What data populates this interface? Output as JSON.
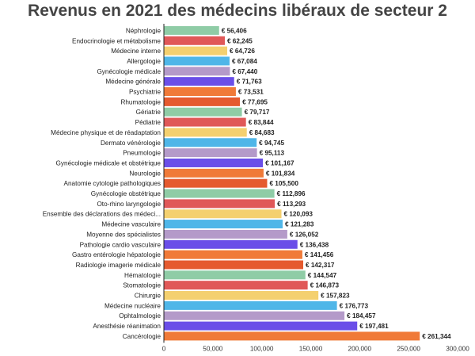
{
  "chart_data": {
    "type": "bar",
    "orientation": "horizontal",
    "title": "Revenus en 2021 des médecins libéraux de secteur 2",
    "xlabel": "",
    "ylabel": "",
    "xlim": [
      0,
      300000
    ],
    "x_ticks": [
      0,
      50000,
      100000,
      150000,
      200000,
      250000,
      300000
    ],
    "x_tick_labels": [
      "0",
      "50,000",
      "100,000",
      "150,000",
      "200,000",
      "250,000",
      "300,000"
    ],
    "grid": false,
    "legend": "none",
    "value_prefix": "€ ",
    "categories": [
      "Néphrologie",
      "Endocrinologie et métabolisme",
      "Médecine interne",
      "Allergologie",
      "Gynécologie médicale",
      "Médecine générale",
      "Psychiatrie",
      "Rhumatologie",
      "Gériatrie",
      "Pédiatrie",
      "Médecine physique et de réadaptation",
      "Dermato vénérologie",
      "Pneumologie",
      "Gynécologie médicale et obstétrique",
      "Neurologie",
      "Anatomie cytologie pathologiques",
      "Gynécologie obstétrique",
      "Oto-rhino laryngologie",
      "Ensemble des déclarations des médeci...",
      "Médecine vasculaire",
      "Moyenne des spécialistes",
      "Pathologie cardio vasculaire",
      "Gastro entérologie hépatologie",
      "Radiologie imagerie médicale",
      "Hématologie",
      "Stomatologie",
      "Chirurgie",
      "Médecine nucléaire",
      "Ophtalmologie",
      "Anesthésie réanimation",
      "Cancérologie"
    ],
    "values": [
      56406,
      62245,
      64726,
      67084,
      67440,
      71763,
      73531,
      77695,
      79717,
      83844,
      84683,
      94745,
      95113,
      101167,
      101834,
      105500,
      112896,
      113293,
      120093,
      121283,
      126052,
      136438,
      141456,
      142317,
      144547,
      146873,
      157823,
      176773,
      184457,
      197481,
      261344
    ],
    "value_labels": [
      "€ 56,406",
      "€ 62,245",
      "€ 64,726",
      "€ 67,084",
      "€ 67,440",
      "€ 71,763",
      "€ 73,531",
      "€ 77,695",
      "€ 79,717",
      "€ 83,844",
      "€ 84,683",
      "€ 94,745",
      "€ 95,113",
      "€ 101,167",
      "€ 101,834",
      "€ 105,500",
      "€ 112,896",
      "€ 113,293",
      "€ 120,093",
      "€ 121,283",
      "€ 126,052",
      "€ 136,438",
      "€ 141,456",
      "€ 142,317",
      "€ 144,547",
      "€ 146,873",
      "€ 157,823",
      "€ 176,773",
      "€ 184,457",
      "€ 197,481",
      "€ 261,344"
    ],
    "palette": [
      "#8fcca6",
      "#e05858",
      "#f4d06f",
      "#4fb6e8",
      "#b49ac9",
      "#6a4ee8",
      "#f07a38",
      "#e55a2f"
    ],
    "bar_colors": [
      "#8fcca6",
      "#e05858",
      "#f4d06f",
      "#4fb6e8",
      "#b49ac9",
      "#6a4ee8",
      "#f07a38",
      "#e55a2f",
      "#8fcca6",
      "#e05858",
      "#f4d06f",
      "#4fb6e8",
      "#b49ac9",
      "#6a4ee8",
      "#f07a38",
      "#e55a2f",
      "#8fcca6",
      "#e05858",
      "#f4d06f",
      "#4fb6e8",
      "#b49ac9",
      "#6a4ee8",
      "#f07a38",
      "#e55a2f",
      "#8fcca6",
      "#e05858",
      "#f4d06f",
      "#4fb6e8",
      "#b49ac9",
      "#6a4ee8",
      "#f07a38"
    ],
    "axis_color": "#222222"
  }
}
